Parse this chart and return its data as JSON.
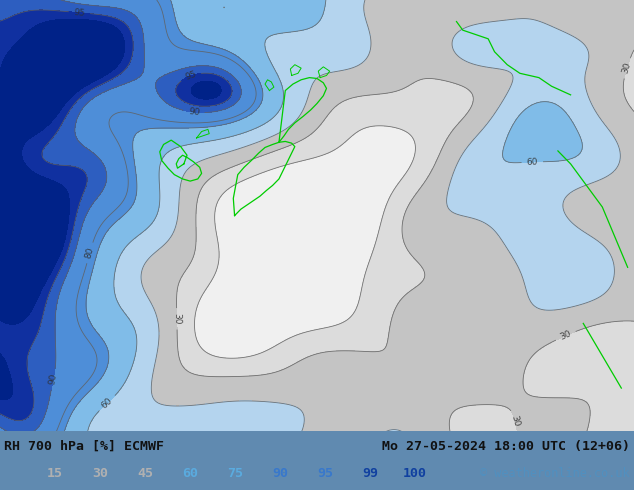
{
  "title_left": "RH 700 hPa [%] ECMWF",
  "title_right": "Mo 27-05-2024 18:00 UTC (12+06)",
  "copyright": "© weatheronline.co.uk",
  "colorbar_values": [
    15,
    30,
    45,
    60,
    75,
    90,
    95,
    99,
    100
  ],
  "colorbar_text_colors": [
    "#b0b0b0",
    "#b0b0b0",
    "#b0b0b0",
    "#5aabdf",
    "#5aabdf",
    "#3878cc",
    "#3878cc",
    "#1040a0",
    "#1040a0"
  ],
  "map_colors": [
    "#f2f2f2",
    "#e0e0e0",
    "#cccccc",
    "#b8d8f0",
    "#88c4f0",
    "#5599e8",
    "#3366cc",
    "#1133aa",
    "#0022880"
  ],
  "figsize": [
    6.34,
    4.9
  ],
  "dpi": 100
}
